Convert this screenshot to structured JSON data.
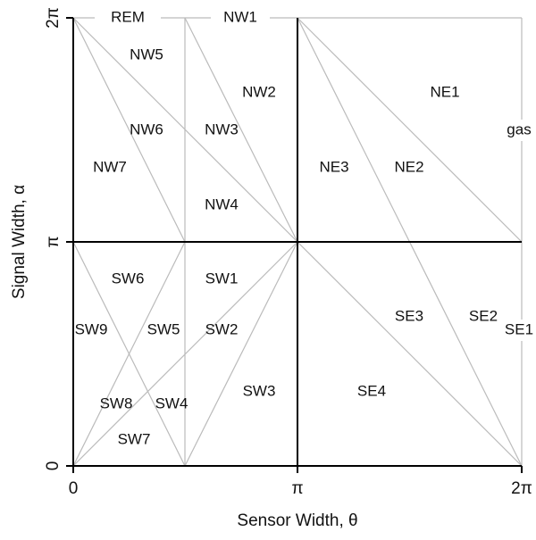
{
  "axes": {
    "x_label": "Sensor Width, θ",
    "y_label": "Signal Width, α",
    "x_ticks": [
      "0",
      "π",
      "2π"
    ],
    "y_ticks": [
      "0",
      "π",
      "2π"
    ]
  },
  "regions": [
    "REM",
    "NW1",
    "NW5",
    "NW2",
    "NE1",
    "NW6",
    "NW3",
    "gas",
    "NW7",
    "NE3",
    "NE2",
    "NW4",
    "SW6",
    "SW1",
    "SE3",
    "SE2",
    "SW5",
    "SW9",
    "SW2",
    "SE1",
    "SW3",
    "SE4",
    "SW8",
    "SW4",
    "SW7"
  ]
}
